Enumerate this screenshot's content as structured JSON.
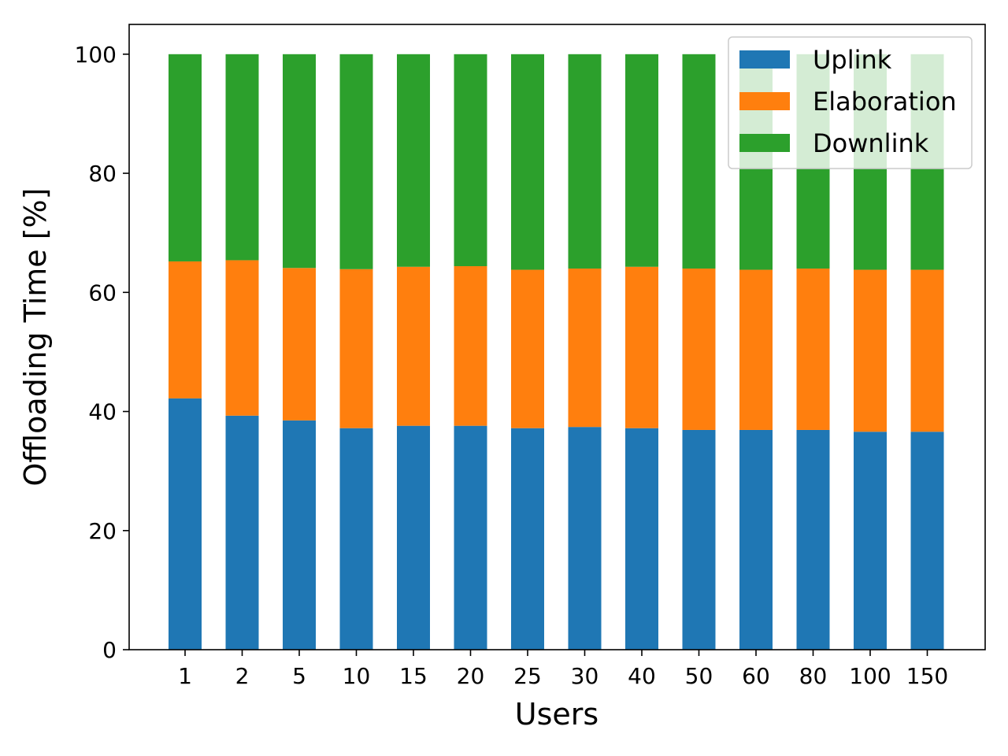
{
  "chart_data": {
    "type": "bar",
    "stacked": true,
    "xlabel": "Users",
    "ylabel": "Offloading Time [%]",
    "ylim": [
      0,
      105
    ],
    "yticks": [
      0,
      20,
      40,
      60,
      80,
      100
    ],
    "categories": [
      "1",
      "2",
      "5",
      "10",
      "15",
      "20",
      "25",
      "30",
      "40",
      "50",
      "60",
      "80",
      "100",
      "150"
    ],
    "series": [
      {
        "name": "Uplink",
        "color": "#1f77b4",
        "values": [
          42.2,
          39.3,
          38.5,
          37.2,
          37.6,
          37.6,
          37.2,
          37.4,
          37.2,
          36.9,
          36.9,
          36.9,
          36.6,
          36.6
        ]
      },
      {
        "name": "Elaboration",
        "color": "#ff7f0e",
        "values": [
          23.0,
          26.1,
          25.6,
          26.7,
          26.7,
          26.8,
          26.6,
          26.6,
          27.1,
          27.1,
          26.9,
          27.1,
          27.2,
          27.2
        ]
      },
      {
        "name": "Downlink",
        "color": "#2ca02c",
        "values": [
          34.8,
          34.6,
          35.9,
          36.1,
          35.7,
          35.6,
          36.2,
          36.0,
          35.7,
          36.0,
          36.2,
          36.0,
          36.2,
          36.2
        ]
      }
    ],
    "grid": false,
    "legend_position": "top-right"
  }
}
